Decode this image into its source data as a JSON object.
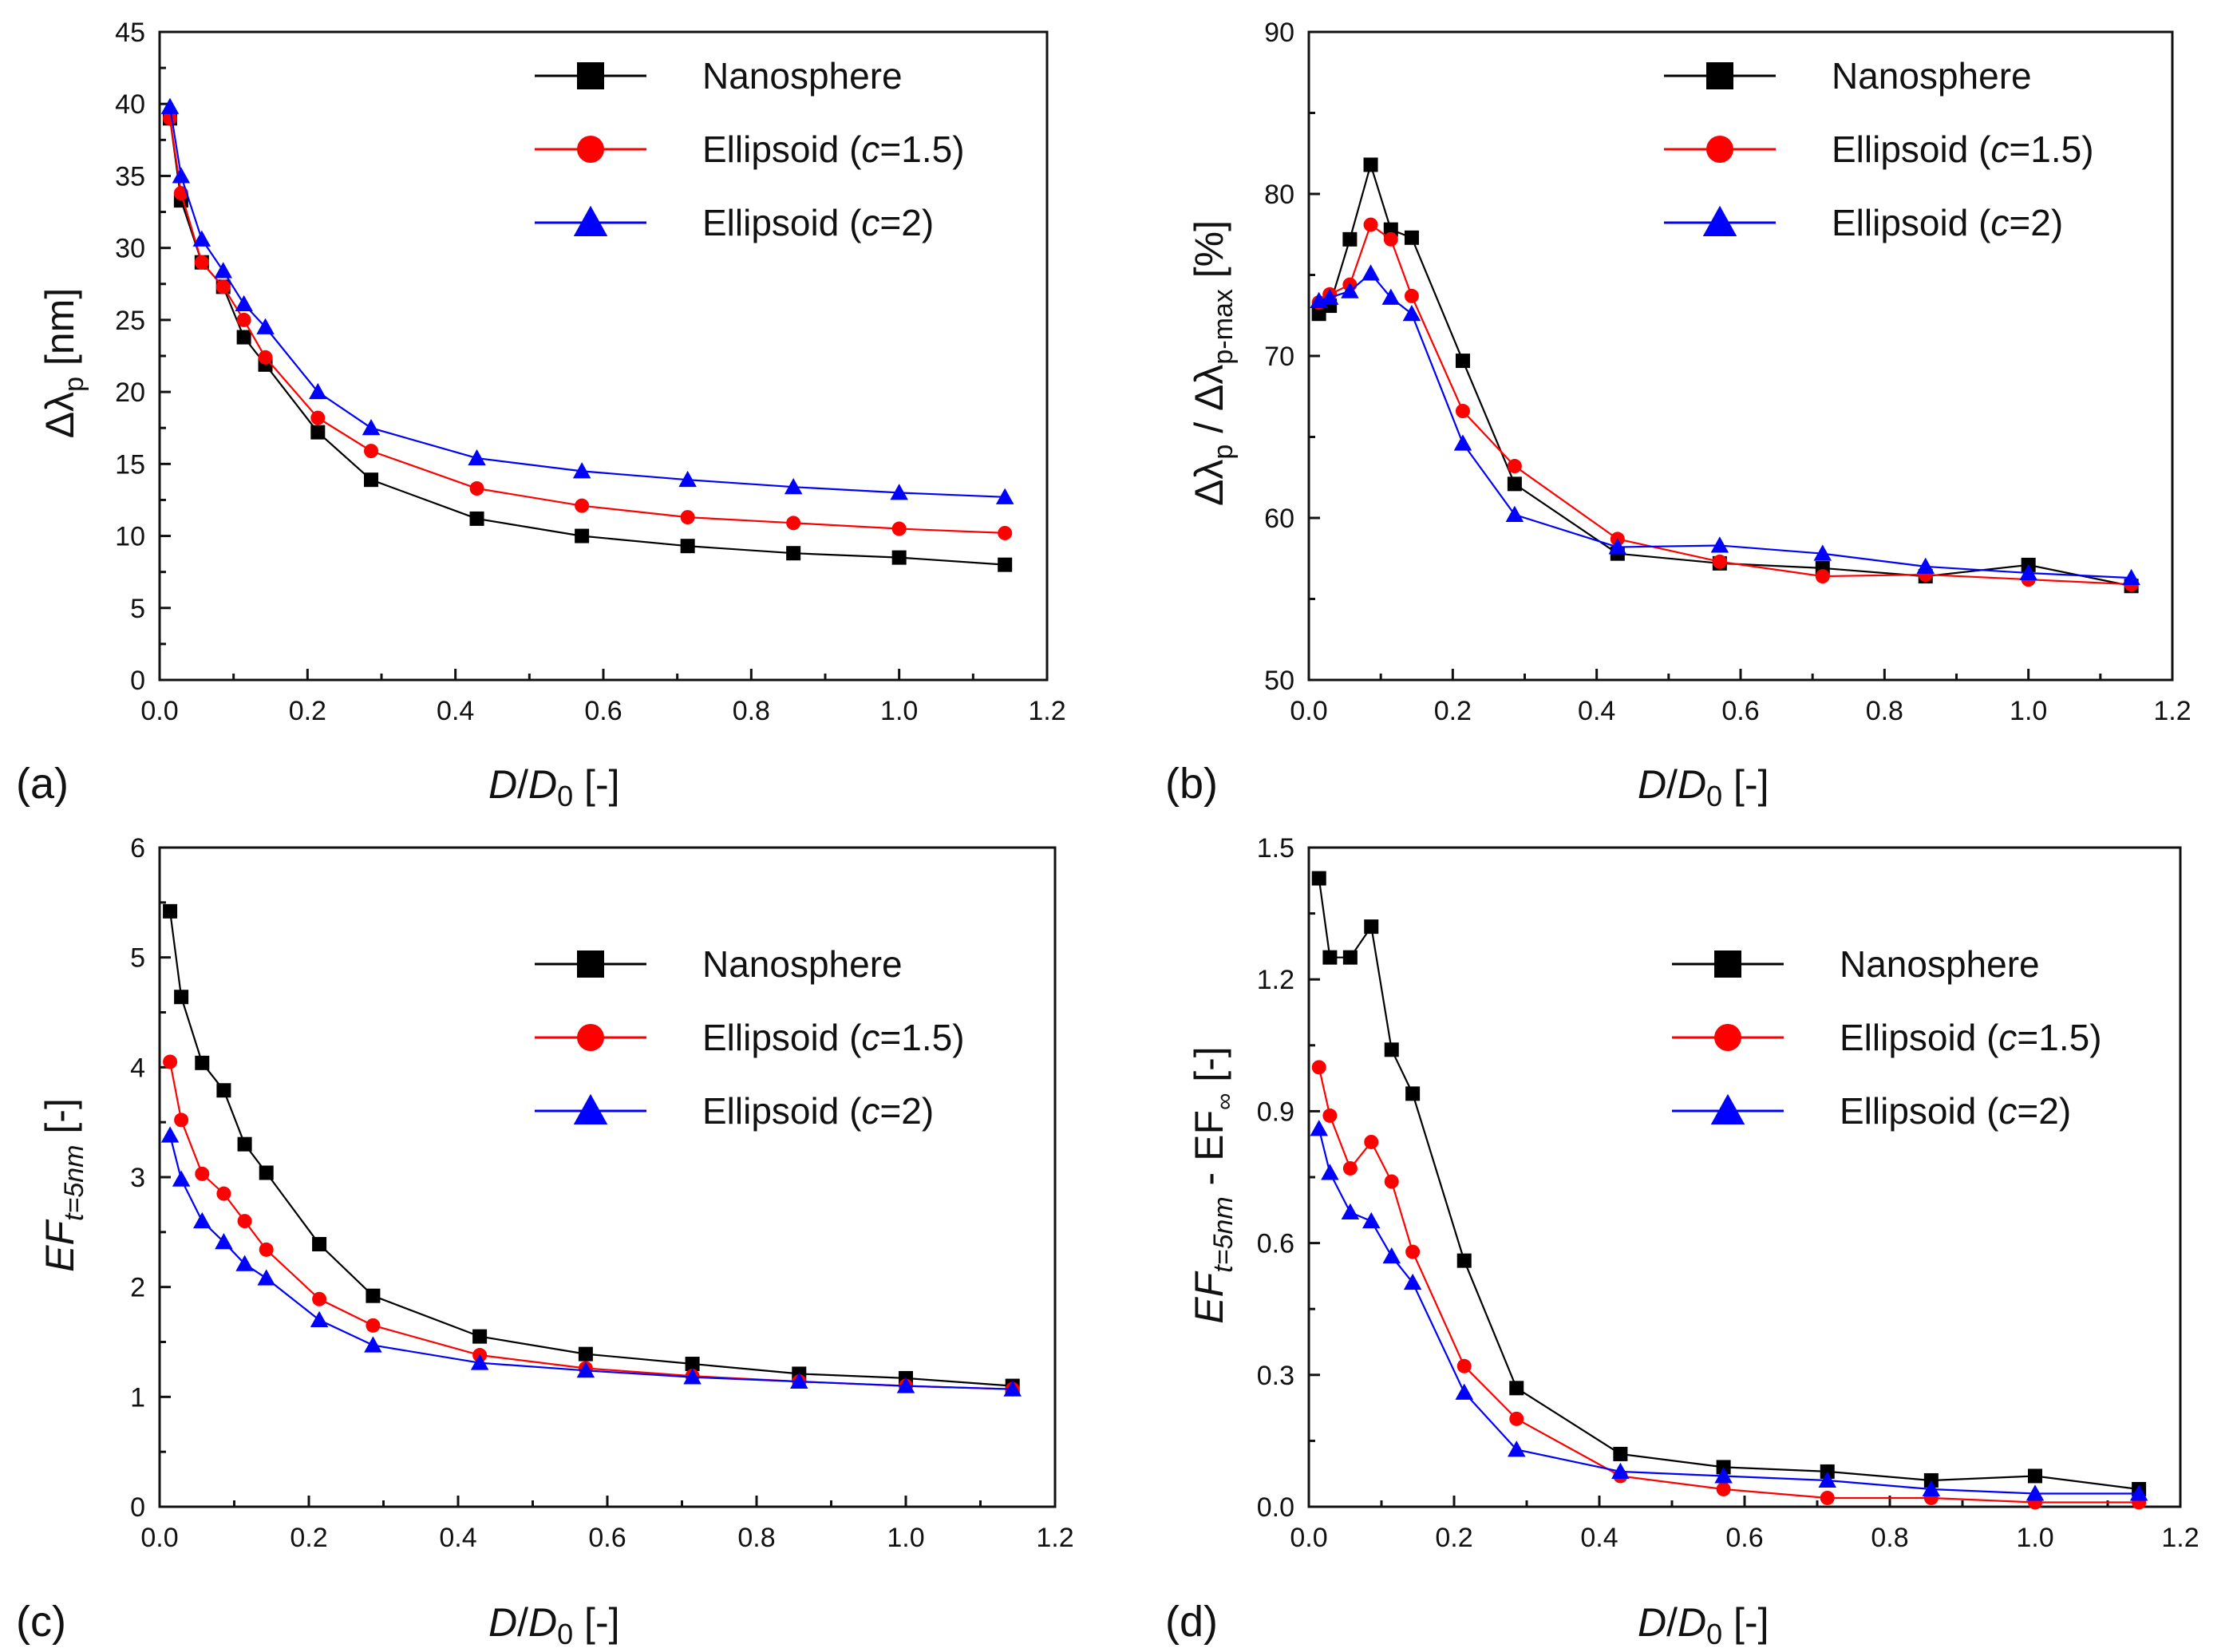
{
  "figure": {
    "panel_labels": [
      "(a)",
      "(b)",
      "(c)",
      "(d)"
    ]
  },
  "legend": {
    "s1": "Nanosphere",
    "s2_prefix": "Ellipsoid (",
    "s2_c": "c",
    "s2_suffix": "=1.5)",
    "s3_prefix": "Ellipsoid (",
    "s3_c": "c",
    "s3_suffix": "=2)"
  },
  "axis_text": {
    "x_D": "D",
    "x_slash": "/",
    "x_D0": "D",
    "x_0": "0",
    "x_unit": " [-]",
    "a_delta": "Δλ",
    "a_sub": "p",
    "a_unit": " [nm]",
    "b_d1": "Δλ",
    "b_s1": "p",
    "b_mid": " / Δλ",
    "b_s2": "p-max",
    "b_unit": " [%]",
    "c_EF": "EF",
    "c_sub": "t=5nm",
    "c_unit": " [-]",
    "d_EF": "EF",
    "d_sub": "t=5nm",
    "d_mid": " - EF",
    "d_sub2": "∞",
    "d_unit": "  [-]"
  },
  "colors": {
    "nanosphere": "#000000",
    "ellipsoid_c15": "#ff0000",
    "ellipsoid_c2": "#0000ff"
  },
  "chart_data": [
    {
      "panel": "(a)",
      "type": "line",
      "title": "",
      "xlabel": "D/D0 [-]",
      "ylabel": "Δλp [nm]",
      "xlim": [
        0,
        1.2
      ],
      "ylim": [
        0,
        45
      ],
      "xticks": [
        0.0,
        0.2,
        0.4,
        0.6,
        0.8,
        1.0,
        1.2
      ],
      "xtick_labels": [
        "0.0",
        "0.2",
        "0.4",
        "0.6",
        "0.8",
        "1.0",
        "1.2"
      ],
      "yticks": [
        0,
        5,
        10,
        15,
        20,
        25,
        30,
        35,
        40,
        45
      ],
      "ytick_labels": [
        "0",
        "5",
        "10",
        "15",
        "20",
        "25",
        "30",
        "35",
        "40",
        "45"
      ],
      "legend_position": "top-right",
      "x": [
        0.014,
        0.029,
        0.057,
        0.086,
        0.114,
        0.143,
        0.214,
        0.286,
        0.429,
        0.571,
        0.714,
        0.857,
        1.0,
        1.143
      ],
      "series": [
        {
          "name": "Nanosphere",
          "marker": "square",
          "values": [
            39.0,
            33.3,
            29.0,
            27.3,
            23.8,
            21.9,
            17.2,
            13.9,
            11.2,
            10.0,
            9.3,
            8.8,
            8.5,
            8.0
          ]
        },
        {
          "name": "Ellipsoid (c=1.5)",
          "marker": "circle",
          "values": [
            39.0,
            33.8,
            29.0,
            27.3,
            25.0,
            22.4,
            18.2,
            15.9,
            13.3,
            12.1,
            11.3,
            10.9,
            10.5,
            10.2
          ]
        },
        {
          "name": "Ellipsoid (c=2)",
          "marker": "triangle",
          "values": [
            39.8,
            35.0,
            30.6,
            28.4,
            26.1,
            24.5,
            20.0,
            17.5,
            15.4,
            14.5,
            13.9,
            13.4,
            13.0,
            12.7
          ]
        }
      ]
    },
    {
      "panel": "(b)",
      "type": "line",
      "title": "",
      "xlabel": "D/D0 [-]",
      "ylabel": "Δλp / Δλp-max [%]",
      "xlim": [
        0,
        1.2
      ],
      "ylim": [
        50,
        90
      ],
      "xticks": [
        0.0,
        0.2,
        0.4,
        0.6,
        0.8,
        1.0,
        1.2
      ],
      "xtick_labels": [
        "0.0",
        "0.2",
        "0.4",
        "0.6",
        "0.8",
        "1.0",
        "1.2"
      ],
      "yticks": [
        50,
        60,
        70,
        80,
        90
      ],
      "ytick_labels": [
        "50",
        "60",
        "70",
        "80",
        "90"
      ],
      "legend_position": "top-right",
      "x": [
        0.014,
        0.029,
        0.057,
        0.086,
        0.114,
        0.143,
        0.214,
        0.286,
        0.429,
        0.571,
        0.714,
        0.857,
        1.0,
        1.143
      ],
      "series": [
        {
          "name": "Nanosphere",
          "marker": "square",
          "values": [
            72.6,
            73.1,
            77.2,
            81.8,
            77.8,
            77.3,
            69.7,
            62.1,
            57.8,
            57.2,
            56.9,
            56.4,
            57.1,
            55.8
          ]
        },
        {
          "name": "Ellipsoid (c=1.5)",
          "marker": "circle",
          "values": [
            73.3,
            73.8,
            74.4,
            78.1,
            77.2,
            73.7,
            66.6,
            63.2,
            58.7,
            57.3,
            56.4,
            56.5,
            56.2,
            55.9
          ]
        },
        {
          "name": "Ellipsoid (c=2)",
          "marker": "triangle",
          "values": [
            73.4,
            73.6,
            74.0,
            75.1,
            73.6,
            72.6,
            64.6,
            60.2,
            58.2,
            58.3,
            57.8,
            57.0,
            56.6,
            56.3
          ]
        }
      ]
    },
    {
      "panel": "(c)",
      "type": "line",
      "title": "",
      "xlabel": "D/D0 [-]",
      "ylabel": "EFt=5nm [-]",
      "xlim": [
        0,
        1.2
      ],
      "ylim": [
        0,
        6
      ],
      "xticks": [
        0.0,
        0.2,
        0.4,
        0.6,
        0.8,
        1.0,
        1.2
      ],
      "xtick_labels": [
        "0.0",
        "0.2",
        "0.4",
        "0.6",
        "0.8",
        "1.0",
        "1.2"
      ],
      "yticks": [
        0,
        1,
        2,
        3,
        4,
        5,
        6
      ],
      "ytick_labels": [
        "0",
        "1",
        "2",
        "3",
        "4",
        "5",
        "6"
      ],
      "legend_position": "middle-right",
      "x": [
        0.014,
        0.029,
        0.057,
        0.086,
        0.114,
        0.143,
        0.214,
        0.286,
        0.429,
        0.571,
        0.714,
        0.857,
        1.0,
        1.143
      ],
      "series": [
        {
          "name": "Nanosphere",
          "marker": "square",
          "values": [
            5.42,
            4.64,
            4.04,
            3.79,
            3.3,
            3.04,
            2.39,
            1.92,
            1.55,
            1.39,
            1.3,
            1.21,
            1.17,
            1.1
          ]
        },
        {
          "name": "Ellipsoid (c=1.5)",
          "marker": "circle",
          "values": [
            4.05,
            3.52,
            3.03,
            2.85,
            2.6,
            2.34,
            1.89,
            1.65,
            1.38,
            1.26,
            1.19,
            1.14,
            1.1,
            1.07
          ]
        },
        {
          "name": "Ellipsoid (c=2)",
          "marker": "triangle",
          "values": [
            3.38,
            2.98,
            2.6,
            2.41,
            2.21,
            2.08,
            1.7,
            1.47,
            1.31,
            1.24,
            1.18,
            1.14,
            1.1,
            1.07
          ]
        }
      ]
    },
    {
      "panel": "(d)",
      "type": "line",
      "title": "",
      "xlabel": "D/D0 [-]",
      "ylabel": "EFt=5nm - EF∞ [-]",
      "xlim": [
        0,
        1.2
      ],
      "ylim": [
        0,
        1.5
      ],
      "xticks": [
        0.0,
        0.2,
        0.4,
        0.6,
        0.8,
        1.0,
        1.2
      ],
      "xtick_labels": [
        "0.0",
        "0.2",
        "0.4",
        "0.6",
        "0.8",
        "1.0",
        "1.2"
      ],
      "yticks": [
        0.0,
        0.3,
        0.6,
        0.9,
        1.2,
        1.5
      ],
      "ytick_labels": [
        "0.0",
        "0.3",
        "0.6",
        "0.9",
        "1.2",
        "1.5"
      ],
      "legend_position": "middle-right",
      "x": [
        0.014,
        0.029,
        0.057,
        0.086,
        0.114,
        0.143,
        0.214,
        0.286,
        0.429,
        0.571,
        0.714,
        0.857,
        1.0,
        1.143
      ],
      "series": [
        {
          "name": "Nanosphere",
          "marker": "square",
          "values": [
            1.43,
            1.25,
            1.25,
            1.32,
            1.04,
            0.94,
            0.56,
            0.27,
            0.12,
            0.09,
            0.08,
            0.06,
            0.07,
            0.04
          ]
        },
        {
          "name": "Ellipsoid (c=1.5)",
          "marker": "circle",
          "values": [
            1.0,
            0.89,
            0.77,
            0.83,
            0.74,
            0.58,
            0.32,
            0.2,
            0.07,
            0.04,
            0.02,
            0.02,
            0.01,
            0.01
          ]
        },
        {
          "name": "Ellipsoid (c=2)",
          "marker": "triangle",
          "values": [
            0.86,
            0.76,
            0.67,
            0.65,
            0.57,
            0.51,
            0.26,
            0.13,
            0.08,
            0.07,
            0.06,
            0.04,
            0.03,
            0.03
          ]
        }
      ]
    }
  ]
}
